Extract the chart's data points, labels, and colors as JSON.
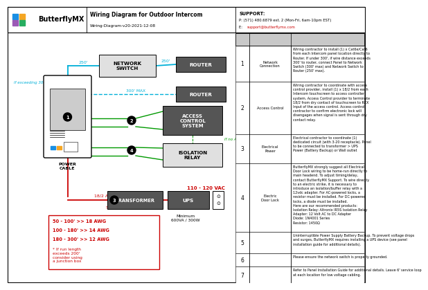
{
  "title": "Wiring Diagram for Outdoor Intercom",
  "subtitle": "Wiring-Diagram-v20-2021-12-08",
  "support_title": "SUPPORT:",
  "support_phone": "P: (571) 480.6879 ext. 2 (Mon-Fri, 6am-10pm EST)",
  "support_email": "E: support@butterflymx.com",
  "bg": "#ffffff",
  "cyan": "#00b0d8",
  "green": "#009900",
  "red": "#cc0000",
  "dkgray": "#555555",
  "ltgray": "#e0e0e0",
  "tblgray": "#c8c8c8",
  "logo_blue": "#1a8fe3",
  "logo_orange": "#f5a623",
  "logo_purple": "#9b59b6",
  "logo_green": "#27ae60",
  "table_rows": [
    {
      "num": "1",
      "type": "Network\nConnection",
      "comment": "Wiring contractor to install (1) x Cat6e/Cat6\nfrom each Intercom panel location directly to\nRouter. If under 300', if wire distance exceeds\n300' to router, connect Panel to Network\nSwitch (300' max) and Network Switch to\nRouter (250' max)."
    },
    {
      "num": "2",
      "type": "Access Control",
      "comment": "Wiring contractor to coordinate with access\ncontrol provider, install (1) x 18/2 from each\nIntercom touchscreen to access controller\nsystem. Access Control provider to terminate\n18/2 from dry contact of touchscreen to REX\nInput of the access control. Access control\ncontractor to confirm electronic lock will\ndisengages when signal is sent through dry\ncontact relay."
    },
    {
      "num": "3",
      "type": "Electrical\nPower",
      "comment": "Electrical contractor to coordinate (1)\ndedicated circuit (with 3-20 receptacle). Panel\nto be connected to transformer > UPS\nPower (Battery Backup) or Wall outlet"
    },
    {
      "num": "4",
      "type": "Electric\nDoor Lock",
      "comment": "ButterflyMX strongly suggest all Electrical\nDoor Lock wiring to be home-run directly to\nmain headend. To adjust timing/delay,\ncontact ButterflyMX Support. To wire directly\nto an electric strike, it is necessary to\nintroduce an isolation/buffer relay with a\n12vdc adapter. For AC-powered locks, a\nresistor must be installed. For DC-powered\nlocks, a diode must be installed.\nHere are our recommended products:\nIsolation Relay: Altronix IR5S Isolation Relay\nAdapter: 12 Volt AC to DC Adapter\nDiode: 1N4001 Series\nResistor: 1450Ω"
    },
    {
      "num": "5",
      "type": "",
      "comment": "Uninterruptible Power Supply Battery Backup. To prevent voltage drops\nand surges, ButterflyMX requires installing a UPS device (see panel\ninstallation guide for additional details)."
    },
    {
      "num": "6",
      "type": "",
      "comment": "Please ensure the network switch is properly grounded."
    },
    {
      "num": "7",
      "type": "",
      "comment": "Refer to Panel Installation Guide for additional details. Leave 6' service loop\nat each location for low voltage cabling."
    }
  ]
}
